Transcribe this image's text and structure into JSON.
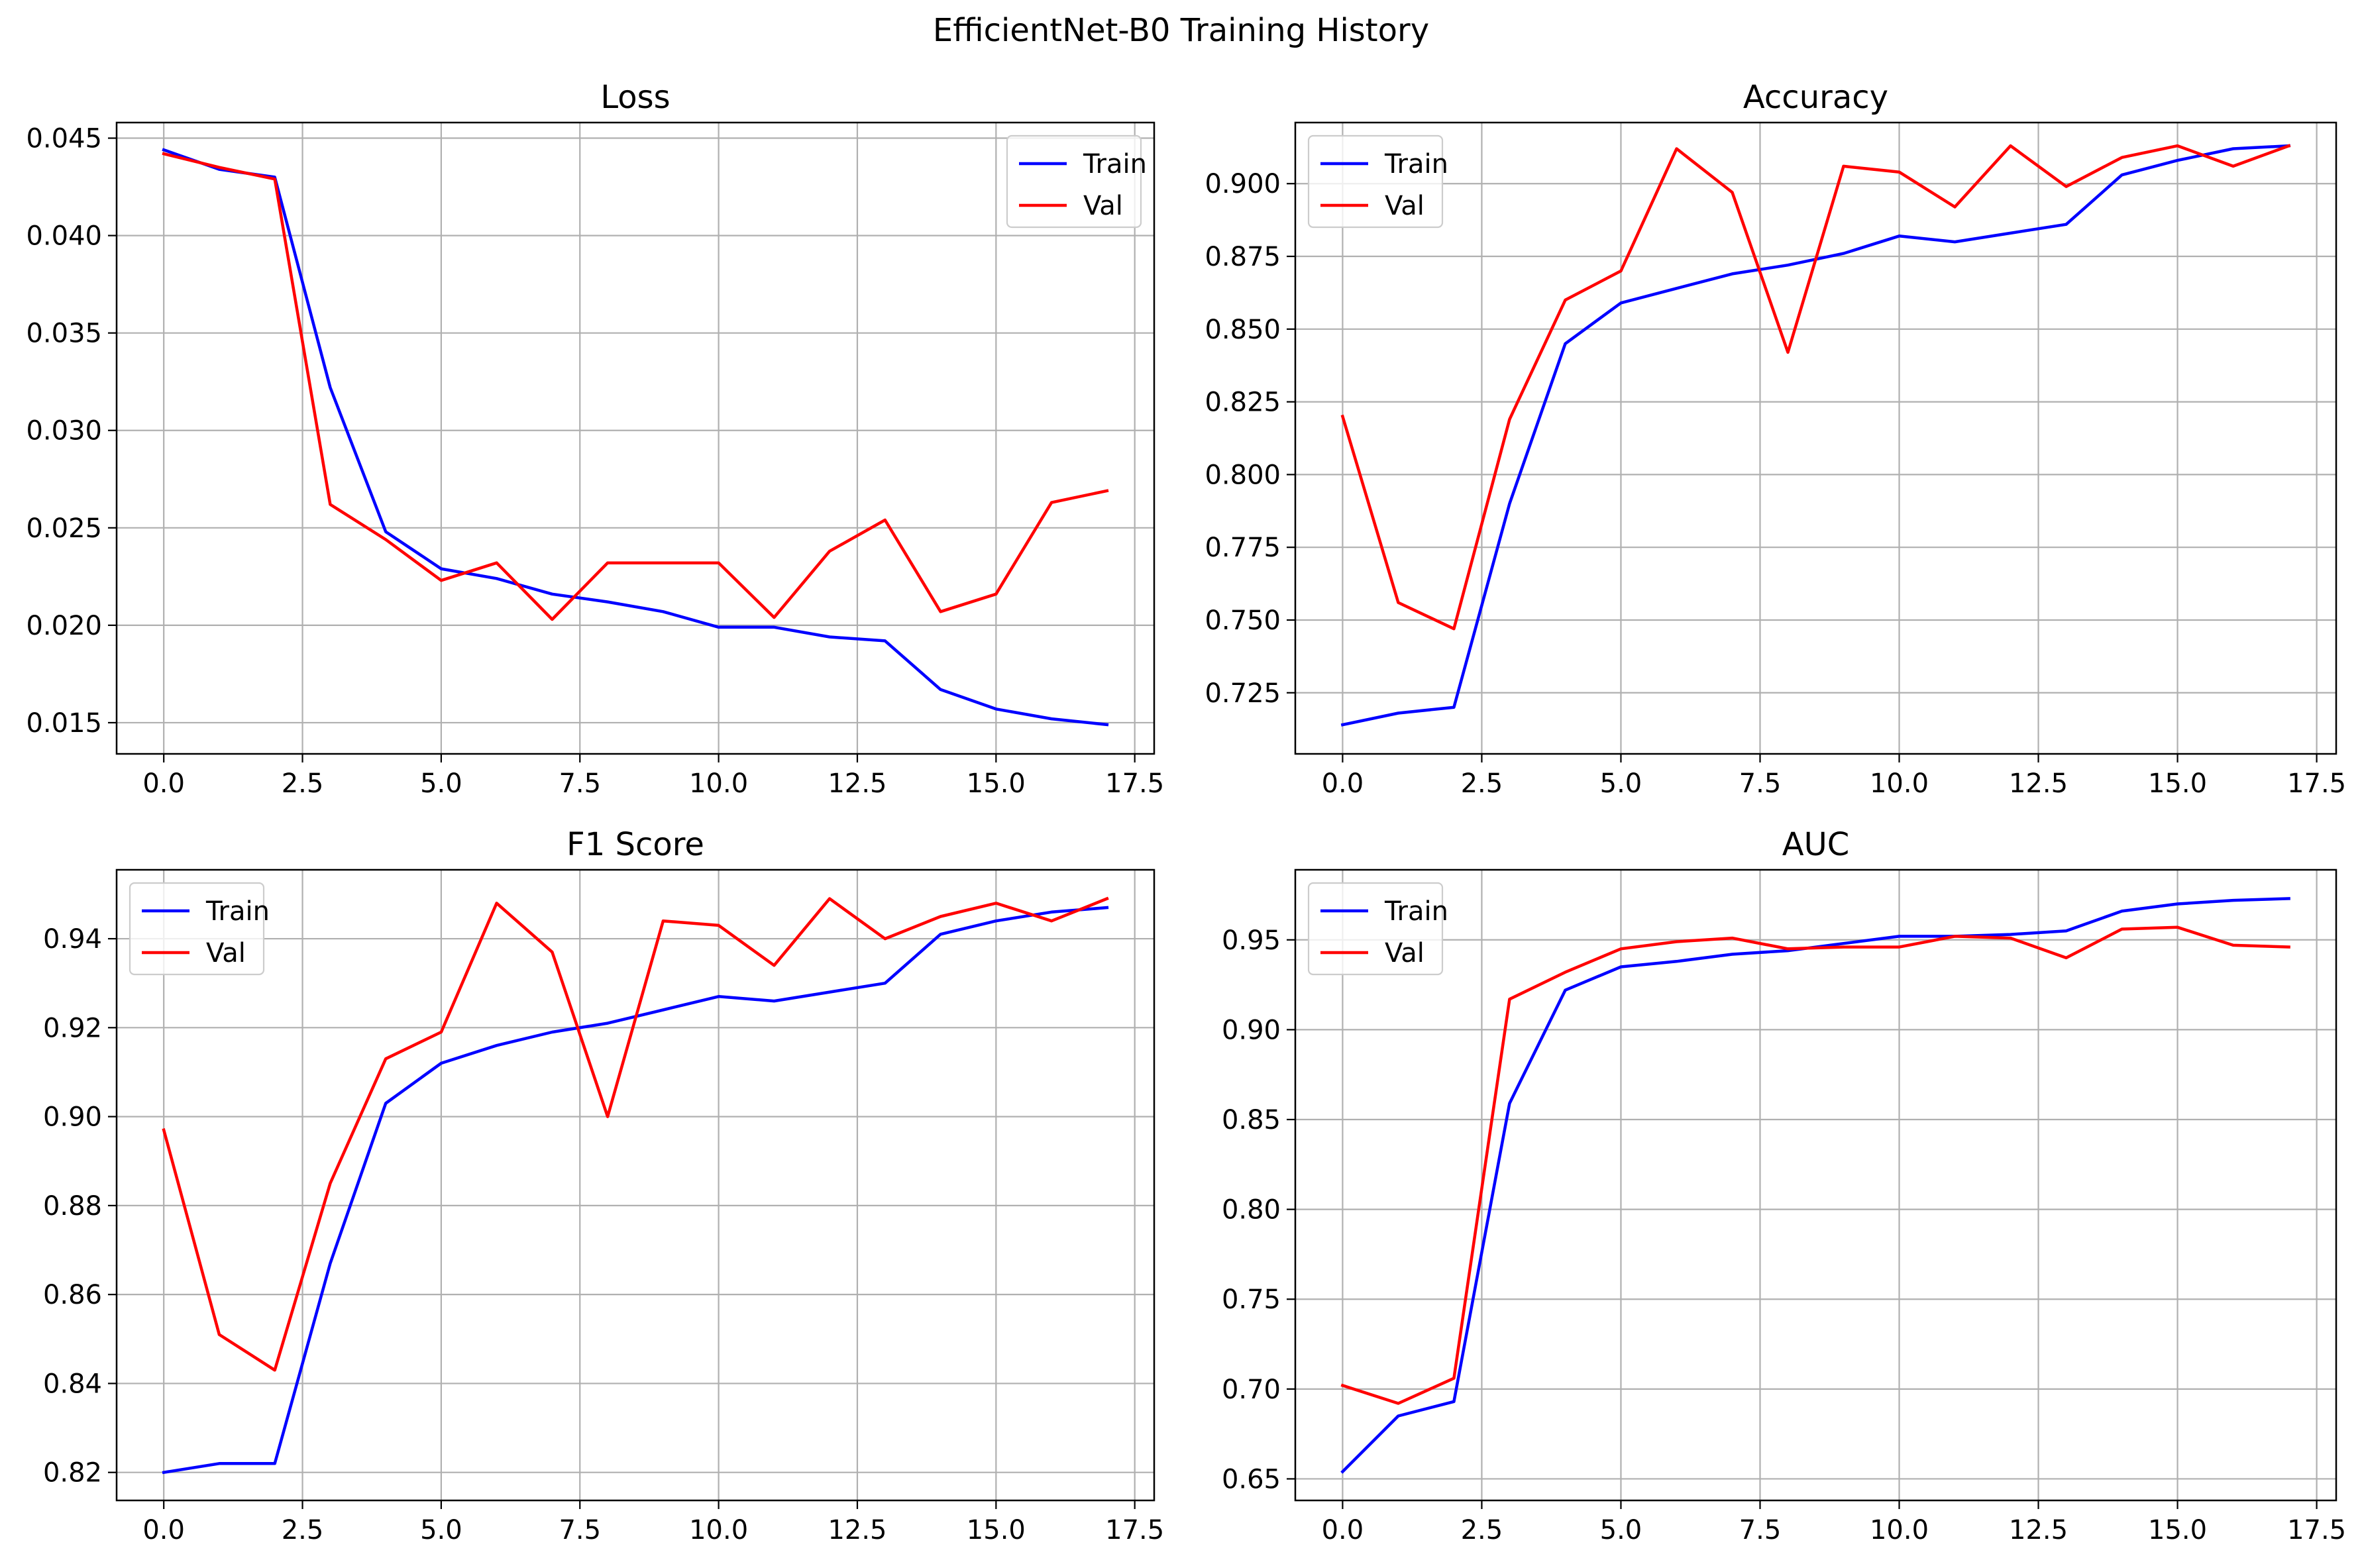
{
  "figure_title": "EfficientNet-B0 Training History",
  "colors": {
    "train": "#0000ff",
    "val": "#ff0000",
    "grid": "#b0b0b0",
    "axes": "#000000"
  },
  "chart_data": [
    {
      "type": "line",
      "title": "Loss",
      "xlabel": "",
      "ylabel": "",
      "xlim": [
        -0.85,
        17.85
      ],
      "ylim": [
        0.0134,
        0.0458
      ],
      "xticks": [
        0.0,
        2.5,
        5.0,
        7.5,
        10.0,
        12.5,
        15.0,
        17.5
      ],
      "xtick_labels": [
        "0.0",
        "2.5",
        "5.0",
        "7.5",
        "10.0",
        "12.5",
        "15.0",
        "17.5"
      ],
      "yticks": [
        0.015,
        0.02,
        0.025,
        0.03,
        0.035,
        0.04,
        0.045
      ],
      "ytick_labels": [
        "0.015",
        "0.020",
        "0.025",
        "0.030",
        "0.035",
        "0.040",
        "0.045"
      ],
      "grid": true,
      "legend_loc": "top-right",
      "x": [
        0,
        1,
        2,
        3,
        4,
        5,
        6,
        7,
        8,
        9,
        10,
        11,
        12,
        13,
        14,
        15,
        16,
        17
      ],
      "series": [
        {
          "name": "Train",
          "color": "#0000ff",
          "values": [
            0.0444,
            0.0434,
            0.043,
            0.0322,
            0.0248,
            0.0229,
            0.0224,
            0.0216,
            0.0212,
            0.0207,
            0.0199,
            0.0199,
            0.0194,
            0.0192,
            0.0167,
            0.0157,
            0.0152,
            0.0149
          ]
        },
        {
          "name": "Val",
          "color": "#ff0000",
          "values": [
            0.0442,
            0.0435,
            0.0429,
            0.0262,
            0.0244,
            0.0223,
            0.0232,
            0.0203,
            0.0232,
            0.0232,
            0.0232,
            0.0204,
            0.0238,
            0.0254,
            0.0207,
            0.0216,
            0.0263,
            0.0269
          ]
        }
      ]
    },
    {
      "type": "line",
      "title": "Accuracy",
      "xlabel": "",
      "ylabel": "",
      "xlim": [
        -0.85,
        17.85
      ],
      "ylim": [
        0.704,
        0.921
      ],
      "xticks": [
        0.0,
        2.5,
        5.0,
        7.5,
        10.0,
        12.5,
        15.0,
        17.5
      ],
      "xtick_labels": [
        "0.0",
        "2.5",
        "5.0",
        "7.5",
        "10.0",
        "12.5",
        "15.0",
        "17.5"
      ],
      "yticks": [
        0.725,
        0.75,
        0.775,
        0.8,
        0.825,
        0.85,
        0.875,
        0.9
      ],
      "ytick_labels": [
        "0.725",
        "0.750",
        "0.775",
        "0.800",
        "0.825",
        "0.850",
        "0.875",
        "0.900"
      ],
      "grid": true,
      "legend_loc": "top-left",
      "x": [
        0,
        1,
        2,
        3,
        4,
        5,
        6,
        7,
        8,
        9,
        10,
        11,
        12,
        13,
        14,
        15,
        16,
        17
      ],
      "series": [
        {
          "name": "Train",
          "color": "#0000ff",
          "values": [
            0.714,
            0.718,
            0.72,
            0.79,
            0.845,
            0.859,
            0.864,
            0.869,
            0.872,
            0.876,
            0.882,
            0.88,
            0.883,
            0.886,
            0.903,
            0.908,
            0.912,
            0.913
          ]
        },
        {
          "name": "Val",
          "color": "#ff0000",
          "values": [
            0.82,
            0.756,
            0.747,
            0.819,
            0.86,
            0.87,
            0.912,
            0.897,
            0.842,
            0.906,
            0.904,
            0.892,
            0.913,
            0.899,
            0.909,
            0.913,
            0.906,
            0.913
          ]
        }
      ]
    },
    {
      "type": "line",
      "title": "F1 Score",
      "xlabel": "",
      "ylabel": "",
      "xlim": [
        -0.85,
        17.85
      ],
      "ylim": [
        0.8137,
        0.9555
      ],
      "xticks": [
        0.0,
        2.5,
        5.0,
        7.5,
        10.0,
        12.5,
        15.0,
        17.5
      ],
      "xtick_labels": [
        "0.0",
        "2.5",
        "5.0",
        "7.5",
        "10.0",
        "12.5",
        "15.0",
        "17.5"
      ],
      "yticks": [
        0.82,
        0.84,
        0.86,
        0.88,
        0.9,
        0.92,
        0.94
      ],
      "ytick_labels": [
        "0.82",
        "0.84",
        "0.86",
        "0.88",
        "0.90",
        "0.92",
        "0.94"
      ],
      "grid": true,
      "legend_loc": "top-left",
      "x": [
        0,
        1,
        2,
        3,
        4,
        5,
        6,
        7,
        8,
        9,
        10,
        11,
        12,
        13,
        14,
        15,
        16,
        17
      ],
      "series": [
        {
          "name": "Train",
          "color": "#0000ff",
          "values": [
            0.82,
            0.822,
            0.822,
            0.867,
            0.903,
            0.912,
            0.916,
            0.919,
            0.921,
            0.924,
            0.927,
            0.926,
            0.928,
            0.93,
            0.941,
            0.944,
            0.946,
            0.947
          ]
        },
        {
          "name": "Val",
          "color": "#ff0000",
          "values": [
            0.897,
            0.851,
            0.843,
            0.885,
            0.913,
            0.919,
            0.948,
            0.937,
            0.9,
            0.944,
            0.943,
            0.934,
            0.949,
            0.94,
            0.945,
            0.948,
            0.944,
            0.949
          ]
        }
      ]
    },
    {
      "type": "line",
      "title": "AUC",
      "xlabel": "",
      "ylabel": "",
      "xlim": [
        -0.85,
        17.85
      ],
      "ylim": [
        0.638,
        0.989
      ],
      "xticks": [
        0.0,
        2.5,
        5.0,
        7.5,
        10.0,
        12.5,
        15.0,
        17.5
      ],
      "xtick_labels": [
        "0.0",
        "2.5",
        "5.0",
        "7.5",
        "10.0",
        "12.5",
        "15.0",
        "17.5"
      ],
      "yticks": [
        0.65,
        0.7,
        0.75,
        0.8,
        0.85,
        0.9,
        0.95
      ],
      "ytick_labels": [
        "0.65",
        "0.70",
        "0.75",
        "0.80",
        "0.85",
        "0.90",
        "0.95"
      ],
      "grid": true,
      "legend_loc": "top-left",
      "x": [
        0,
        1,
        2,
        3,
        4,
        5,
        6,
        7,
        8,
        9,
        10,
        11,
        12,
        13,
        14,
        15,
        16,
        17
      ],
      "series": [
        {
          "name": "Train",
          "color": "#0000ff",
          "values": [
            0.654,
            0.685,
            0.693,
            0.859,
            0.922,
            0.935,
            0.938,
            0.942,
            0.944,
            0.948,
            0.952,
            0.952,
            0.953,
            0.955,
            0.966,
            0.97,
            0.972,
            0.973
          ]
        },
        {
          "name": "Val",
          "color": "#ff0000",
          "values": [
            0.702,
            0.692,
            0.706,
            0.917,
            0.932,
            0.945,
            0.949,
            0.951,
            0.945,
            0.946,
            0.946,
            0.952,
            0.951,
            0.94,
            0.956,
            0.957,
            0.947,
            0.946
          ]
        }
      ]
    }
  ]
}
